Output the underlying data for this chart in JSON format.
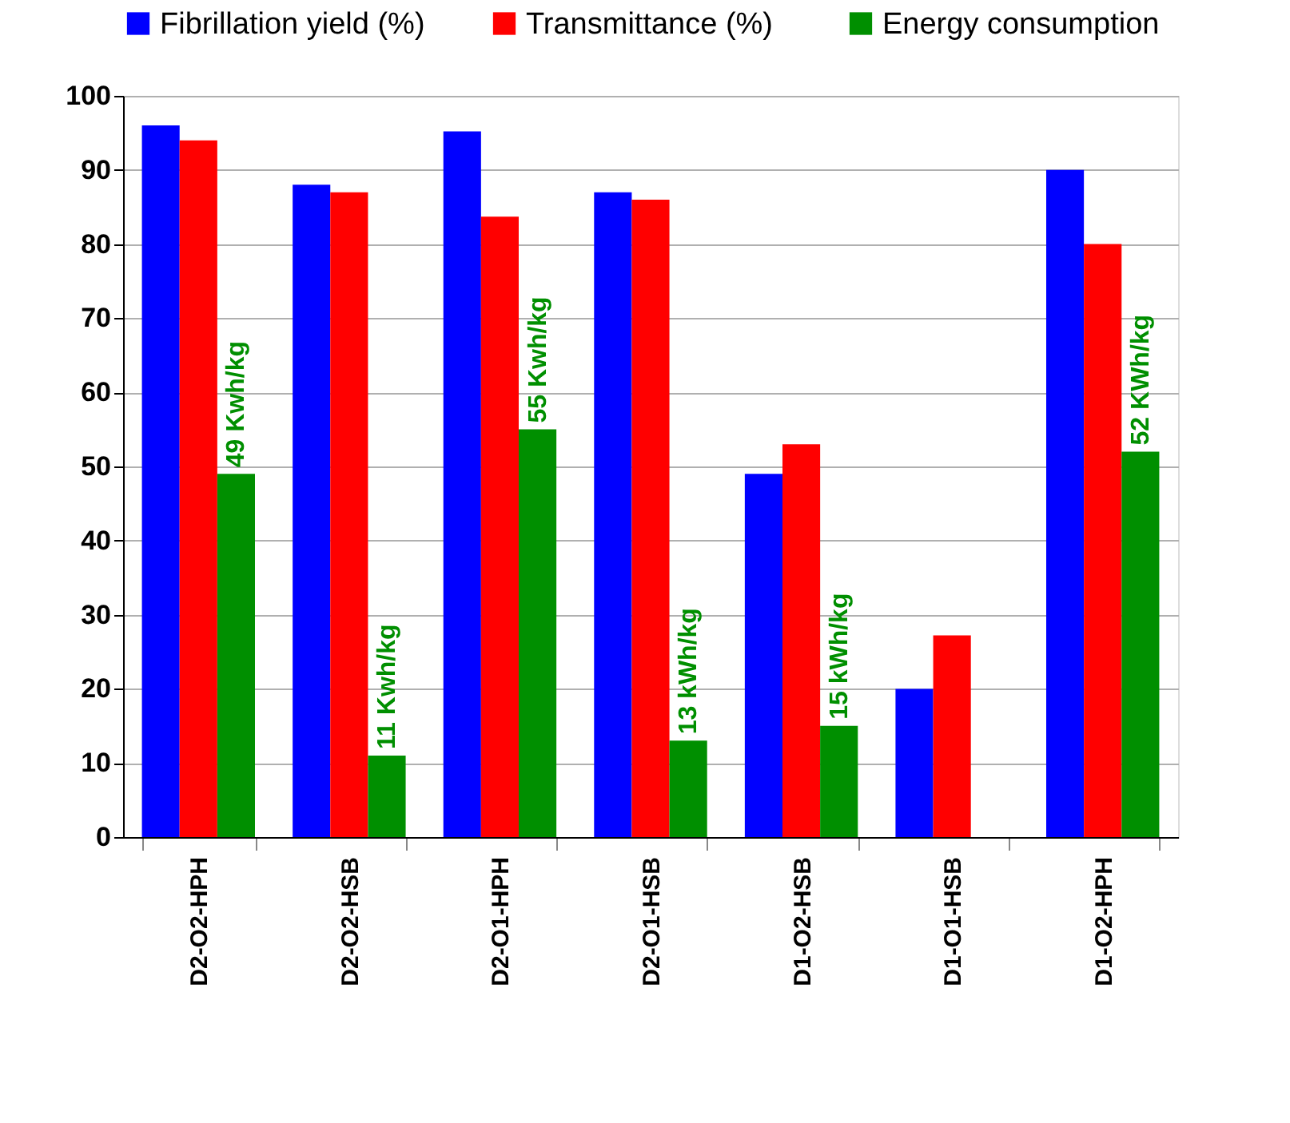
{
  "chart_data": {
    "type": "bar",
    "categories": [
      "D2-O2-HPH",
      "D2-O2-HSB",
      "D2-O1-HPH",
      "D2-O1-HSB",
      "D1-O2-HSB",
      "D1-O1-HSB",
      "D1-O2-HPH"
    ],
    "series": [
      {
        "name": "Fibrillation yield (%)",
        "color": "#0000ff",
        "values": [
          96,
          88,
          95.2,
          87,
          49,
          20,
          90
        ]
      },
      {
        "name": "Transmittance  (%)",
        "color": "#ff0000",
        "values": [
          94,
          87,
          83.7,
          86,
          53,
          27.2,
          80
        ]
      },
      {
        "name": "Energy consumption",
        "color": "#008f00",
        "values": [
          49,
          11,
          55,
          13,
          15,
          null,
          52
        ],
        "value_labels": [
          "49 Kwh/kg",
          "11 Kwh/kg",
          "55 Kwh/kg",
          "13 kWh/kg",
          "15 kWh/kg",
          null,
          "52 KWh/kg"
        ]
      }
    ],
    "ylim": [
      0,
      100
    ],
    "yticks": [
      0,
      10,
      20,
      30,
      40,
      50,
      60,
      70,
      80,
      90,
      100
    ],
    "grid": "y",
    "legend": "top"
  }
}
